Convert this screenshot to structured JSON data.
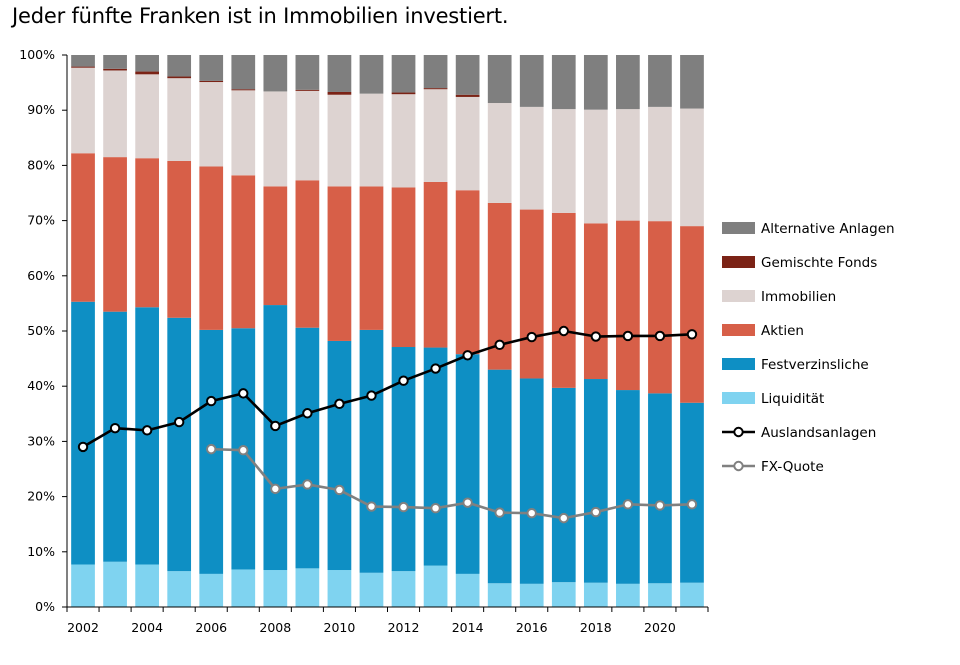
{
  "title": "Jeder fünfte Franken ist in Immobilien investiert.",
  "chart_data": {
    "type": "bar",
    "stacked": true,
    "title": "Jeder fünfte Franken ist in Immobilien investiert.",
    "xlabel": "",
    "ylabel": "",
    "ylim": [
      0,
      100
    ],
    "yticks": [
      "0%",
      "10%",
      "20%",
      "30%",
      "40%",
      "50%",
      "60%",
      "70%",
      "80%",
      "90%",
      "100%"
    ],
    "xticks": [
      "2002",
      "2004",
      "2006",
      "2008",
      "2010",
      "2012",
      "2014",
      "2016",
      "2018",
      "2020"
    ],
    "categories": [
      "2002",
      "2003",
      "2004",
      "2005",
      "2006",
      "2007",
      "2008",
      "2009",
      "2010",
      "2011",
      "2012",
      "2013",
      "2014",
      "2015",
      "2016",
      "2017",
      "2018",
      "2019",
      "2020",
      "2021"
    ],
    "legend_position": "right",
    "series": [
      {
        "name": "Liquidität",
        "color": "#7fd3f0",
        "values": [
          7.7,
          8.2,
          7.7,
          6.5,
          6.0,
          6.8,
          6.7,
          7.0,
          6.7,
          6.2,
          6.5,
          7.5,
          6.0,
          4.3,
          4.2,
          4.5,
          4.4,
          4.2,
          4.3,
          4.4
        ]
      },
      {
        "name": "Festverzinsliche",
        "color": "#0e8fc4",
        "values": [
          47.6,
          45.3,
          46.6,
          45.9,
          44.2,
          43.7,
          48.0,
          43.6,
          41.5,
          44.0,
          40.6,
          39.5,
          39.8,
          38.7,
          37.2,
          35.2,
          36.9,
          35.1,
          34.4,
          32.6
        ]
      },
      {
        "name": "Aktien",
        "color": "#d75f48",
        "values": [
          26.9,
          28.0,
          27.0,
          28.4,
          29.6,
          27.7,
          21.5,
          26.7,
          28.0,
          26.0,
          28.9,
          30.0,
          29.7,
          30.2,
          30.6,
          31.7,
          28.2,
          30.7,
          31.2,
          32.0
        ]
      },
      {
        "name": "Immobilien",
        "color": "#ddd3d1",
        "values": [
          15.5,
          15.7,
          15.2,
          15.0,
          15.3,
          15.4,
          17.2,
          16.2,
          16.6,
          16.8,
          16.9,
          16.8,
          16.9,
          18.1,
          18.6,
          18.8,
          20.6,
          20.2,
          20.7,
          21.3
        ]
      },
      {
        "name": "Gemischte Fonds",
        "color": "#7b2316",
        "values": [
          0.2,
          0.3,
          0.5,
          0.3,
          0.2,
          0.2,
          0.0,
          0.2,
          0.5,
          0.0,
          0.3,
          0.2,
          0.4,
          0.0,
          0.0,
          0.0,
          0.0,
          0.0,
          0.0,
          0.0
        ]
      },
      {
        "name": "Alternative Anlagen",
        "color": "#7f7f7f",
        "values": [
          2.1,
          2.5,
          3.0,
          3.9,
          4.7,
          6.2,
          6.6,
          6.3,
          6.7,
          7.0,
          6.8,
          6.0,
          7.2,
          8.7,
          9.4,
          9.8,
          9.9,
          9.8,
          9.4,
          9.7
        ]
      }
    ],
    "lines": [
      {
        "name": "Auslandsanlagen",
        "color": "#000000",
        "values": [
          29.0,
          32.4,
          32.0,
          33.5,
          37.3,
          38.7,
          32.8,
          35.1,
          36.8,
          38.3,
          41.0,
          43.2,
          45.6,
          47.5,
          48.9,
          50.0,
          49.0,
          49.1,
          49.1,
          49.4
        ]
      },
      {
        "name": "FX-Quote",
        "color": "#808080",
        "values": [
          null,
          null,
          null,
          null,
          28.6,
          28.4,
          21.4,
          22.2,
          21.2,
          18.2,
          18.1,
          17.9,
          18.9,
          17.1,
          17.0,
          16.1,
          17.2,
          18.6,
          18.4,
          18.6
        ]
      }
    ],
    "legend": [
      "Alternative Anlagen",
      "Gemischte Fonds",
      "Immobilien",
      "Aktien",
      "Festverzinsliche",
      "Liquidität",
      "Auslandsanlagen",
      "FX-Quote"
    ]
  }
}
